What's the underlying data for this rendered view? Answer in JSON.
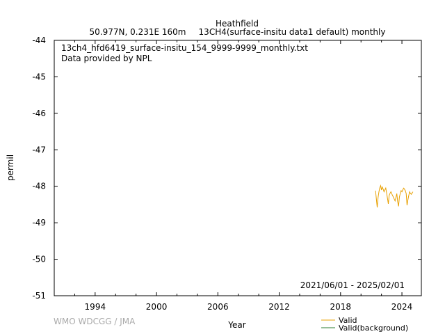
{
  "header": {
    "station": "Heathfield",
    "location": "50.977N, 0.231E 160m",
    "parameter": "13CH4(surface-insitu data1 default) monthly"
  },
  "info": {
    "filename": "13ch4_hfd6419_surface-insitu_154_9999-9999_monthly.txt",
    "provider": "Data provided by NPL"
  },
  "date_range": "2021/06/01 - 2025/02/01",
  "watermark": "WMO WDCGG / JMA",
  "legend": {
    "valid": "Valid",
    "valid_background": "Valid(background)"
  },
  "colors": {
    "valid": "#e8a000",
    "valid_background": "#2e7d32"
  },
  "chart_data": {
    "type": "line",
    "xlabel": "Year",
    "ylabel": "permil",
    "xlim": [
      1990.0,
      2025.9
    ],
    "ylim": [
      -51,
      -44
    ],
    "xticks": [
      1994,
      2000,
      2006,
      2012,
      2018,
      2024
    ],
    "yticks": [
      -44,
      -45,
      -46,
      -47,
      -48,
      -49,
      -50,
      -51
    ],
    "series": [
      {
        "name": "Valid",
        "points": [
          [
            2021.42,
            -48.12
          ],
          [
            2021.5,
            -48.35
          ],
          [
            2021.58,
            -48.58
          ],
          [
            2021.67,
            -48.3
          ],
          [
            2021.75,
            -48.15
          ],
          [
            2021.83,
            -48.05
          ],
          [
            2021.92,
            -47.98
          ],
          [
            2022.0,
            -48.1
          ],
          [
            2022.08,
            -48.02
          ],
          [
            2022.17,
            -48.08
          ],
          [
            2022.25,
            -48.15
          ],
          [
            2022.33,
            -48.1
          ],
          [
            2022.42,
            -48.05
          ],
          [
            2022.5,
            -48.18
          ],
          [
            2022.58,
            -48.32
          ],
          [
            2022.67,
            -48.48
          ],
          [
            2022.75,
            -48.25
          ],
          [
            2022.83,
            -48.2
          ],
          [
            2022.92,
            -48.15
          ],
          [
            2023.0,
            -48.2
          ],
          [
            2023.08,
            -48.25
          ],
          [
            2023.17,
            -48.3
          ],
          [
            2023.25,
            -48.35
          ],
          [
            2023.33,
            -48.4
          ],
          [
            2023.42,
            -48.3
          ],
          [
            2023.5,
            -48.2
          ],
          [
            2023.58,
            -48.42
          ],
          [
            2023.67,
            -48.55
          ],
          [
            2023.75,
            -48.3
          ],
          [
            2023.83,
            -48.2
          ],
          [
            2023.92,
            -48.12
          ],
          [
            2024.0,
            -48.15
          ],
          [
            2024.08,
            -48.1
          ],
          [
            2024.17,
            -48.05
          ],
          [
            2024.25,
            -48.08
          ],
          [
            2024.33,
            -48.12
          ],
          [
            2024.42,
            -48.2
          ],
          [
            2024.5,
            -48.52
          ],
          [
            2024.58,
            -48.38
          ],
          [
            2024.67,
            -48.25
          ],
          [
            2024.75,
            -48.15
          ],
          [
            2024.83,
            -48.2
          ],
          [
            2024.92,
            -48.22
          ],
          [
            2025.0,
            -48.18
          ],
          [
            2025.08,
            -48.15
          ]
        ]
      }
    ]
  }
}
